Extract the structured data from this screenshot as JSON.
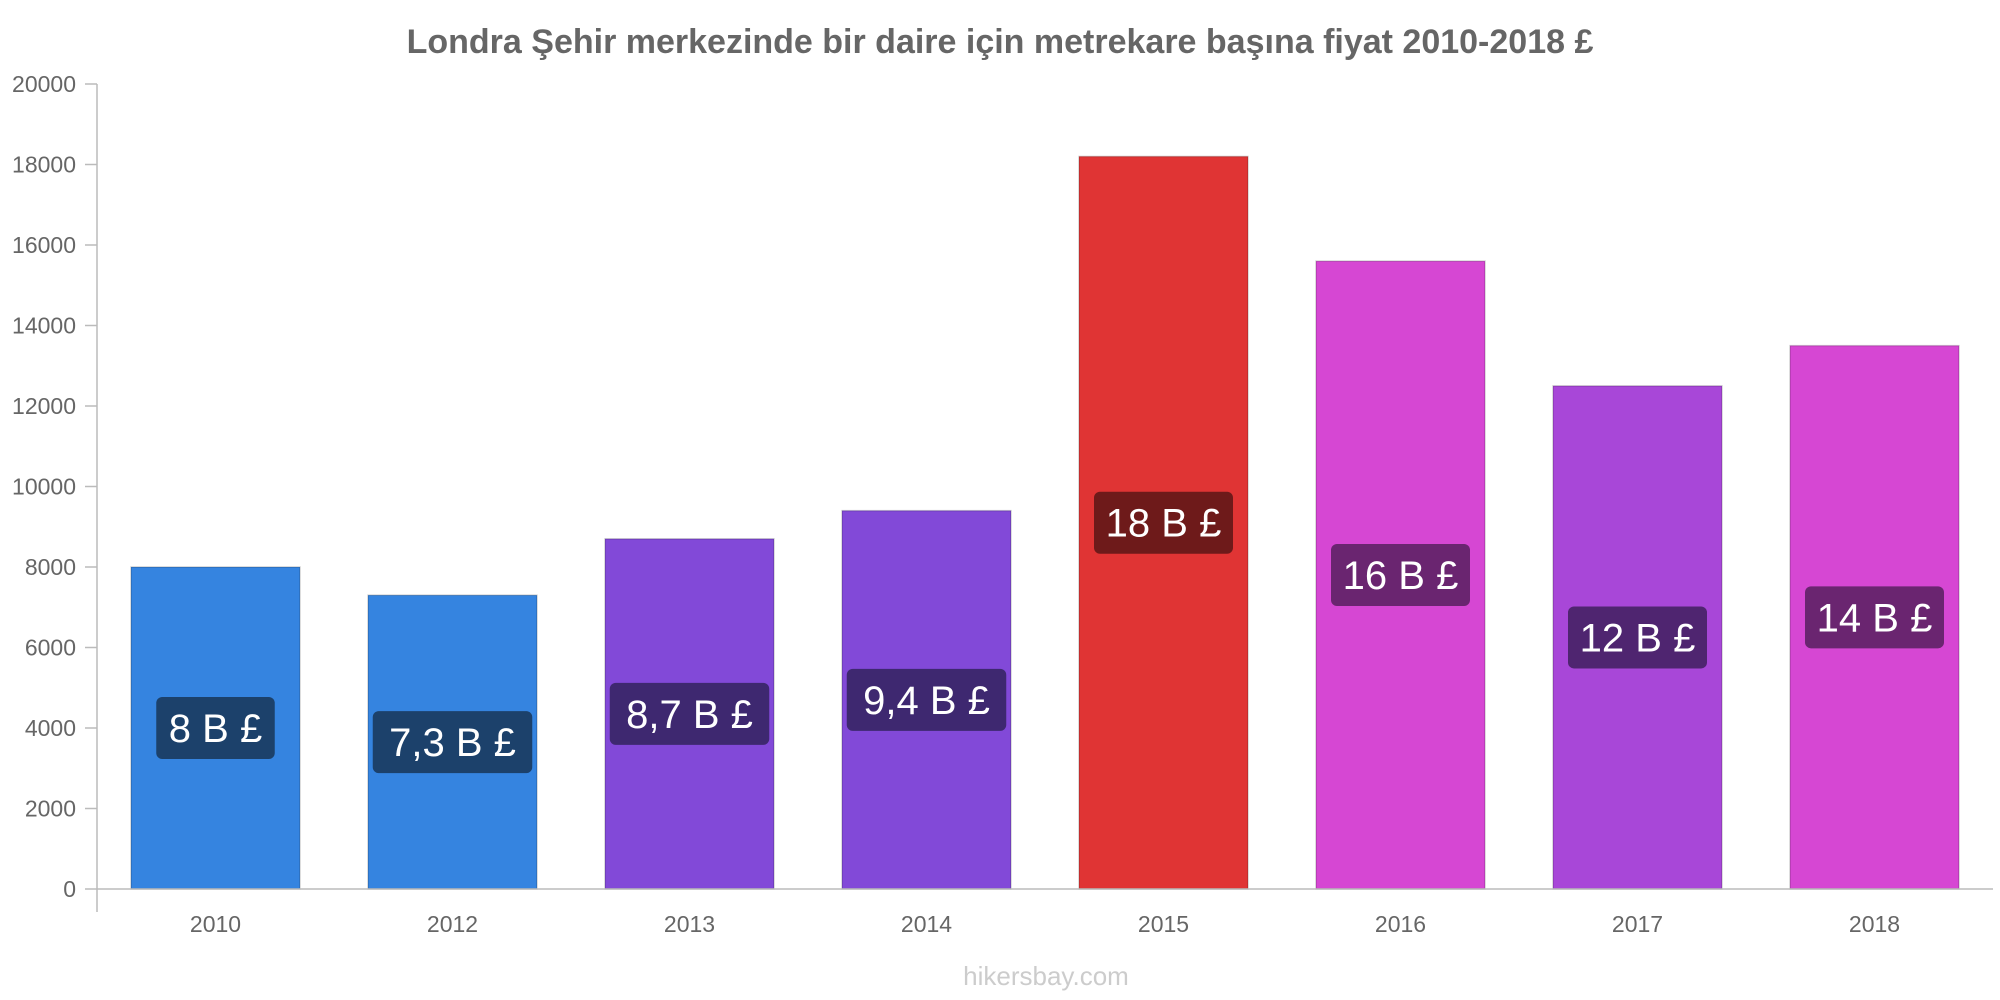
{
  "chart_data": {
    "type": "bar",
    "title": "Londra Şehir merkezinde bir daire için metrekare başına fiyat 2010-2018 £",
    "xlabel": "",
    "ylabel": "",
    "ylim": [
      0,
      20000
    ],
    "yticks": [
      0,
      2000,
      4000,
      6000,
      8000,
      10000,
      12000,
      14000,
      16000,
      18000,
      20000
    ],
    "categories": [
      "2010",
      "2012",
      "2013",
      "2014",
      "2015",
      "2016",
      "2017",
      "2018"
    ],
    "values": [
      8000,
      7300,
      8700,
      9400,
      18200,
      15600,
      12500,
      13500
    ],
    "data_labels": [
      "8 B £",
      "7,3 B £",
      "8,7 B £",
      "9,4 B £",
      "18 B £",
      "16 B £",
      "12 B £",
      "14 B £"
    ],
    "bar_colors": [
      "#3584e0",
      "#3584e0",
      "#8249d8",
      "#8249d8",
      "#e03434",
      "#d647d3",
      "#a847d8",
      "#d647d3"
    ],
    "label_box_colors": [
      "#1c416b",
      "#1c416b",
      "#3e2870",
      "#3e2870",
      "#6e1a1a",
      "#6a2570",
      "#4f2570",
      "#6a2570"
    ],
    "grid": false,
    "legend": "none"
  },
  "credit": "hikersbay.com"
}
